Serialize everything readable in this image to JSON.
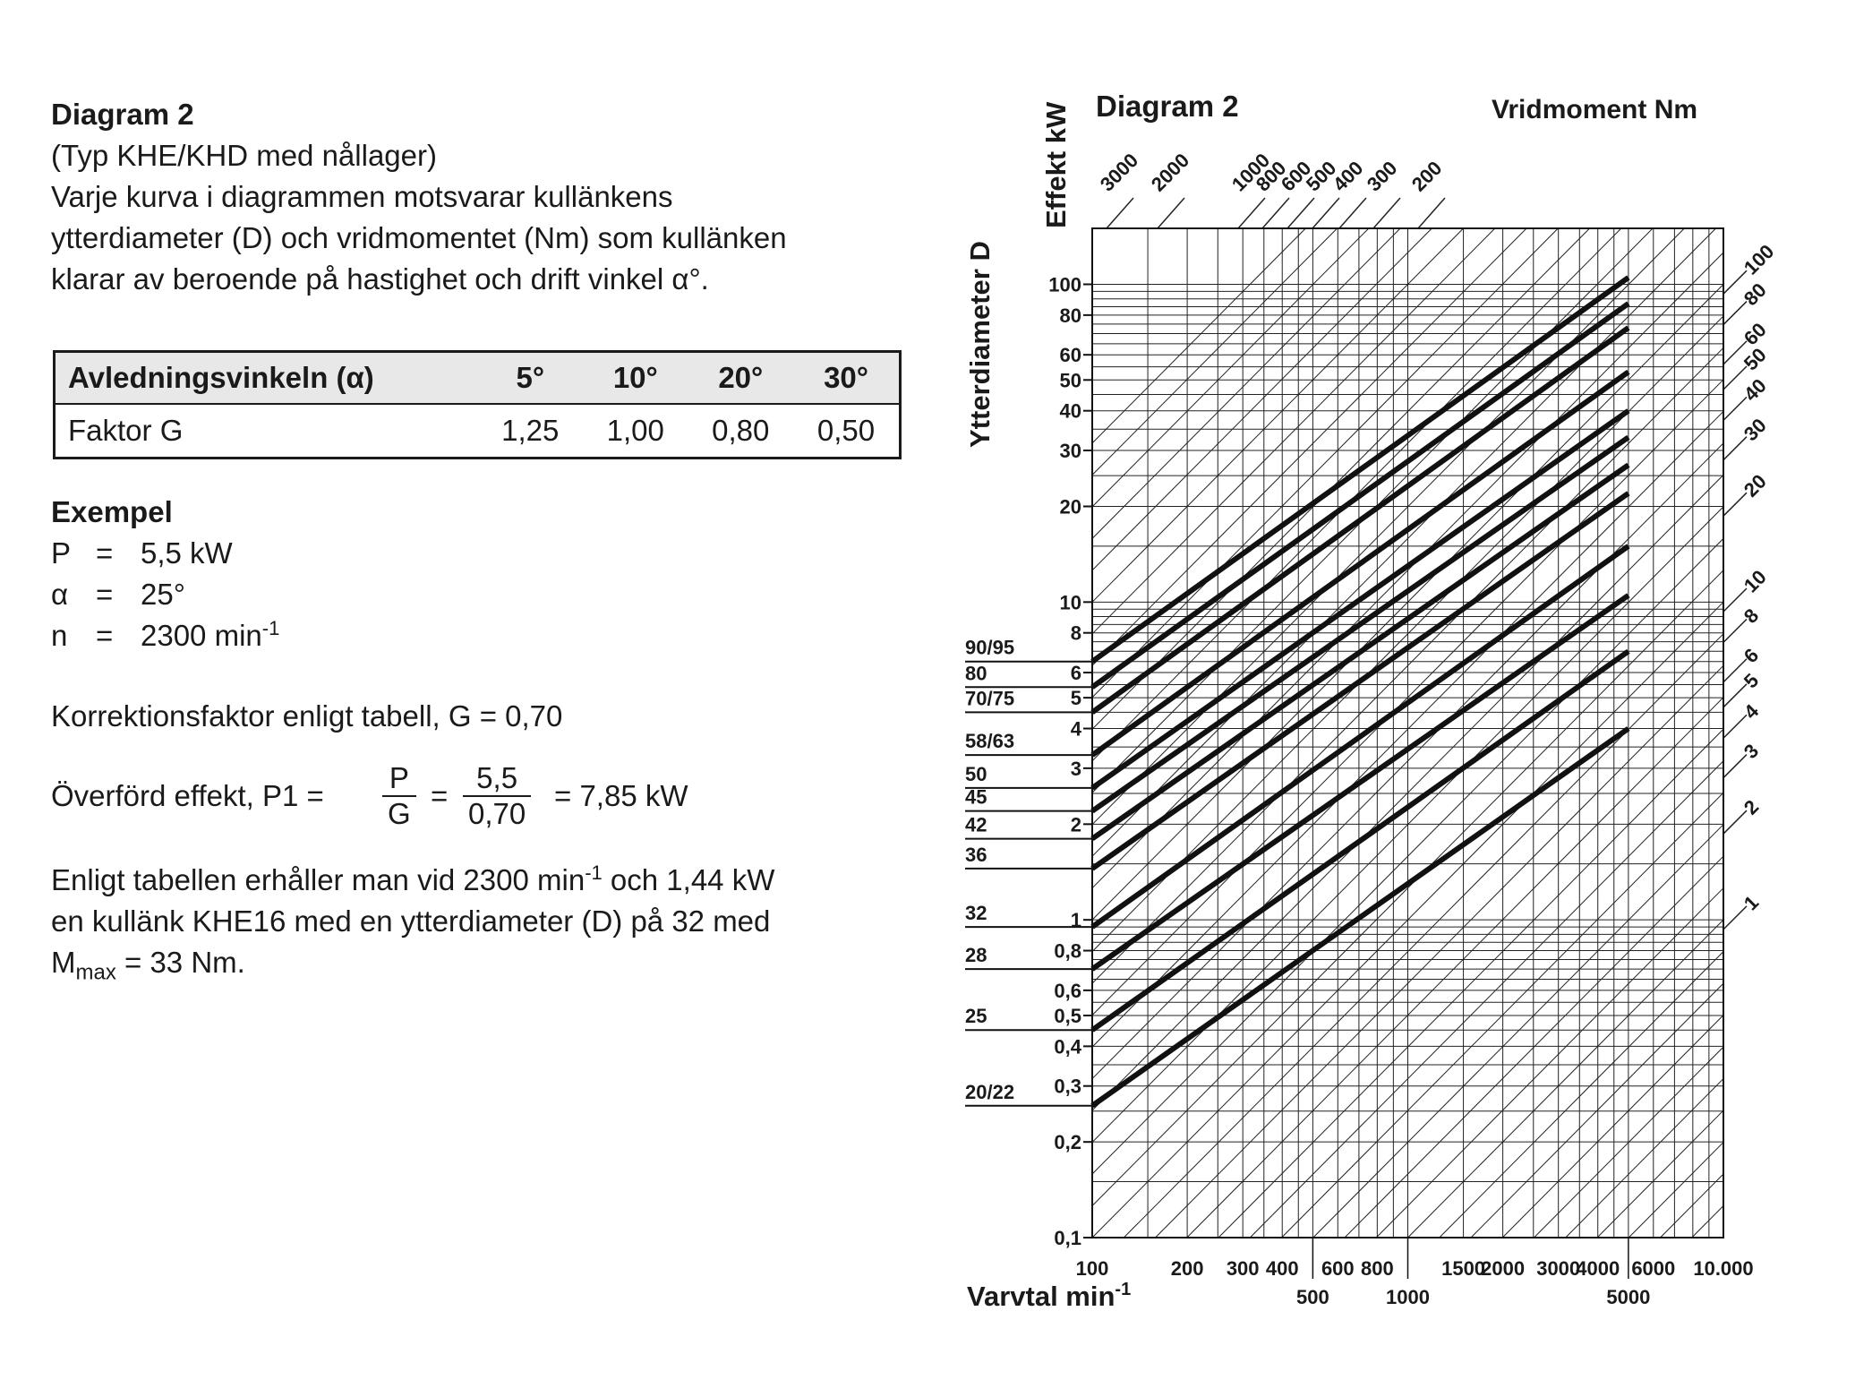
{
  "text": {
    "title": "Diagram 2",
    "subtitle": "(Typ KHE/KHD med nållager)",
    "desc1": "Varje kurva i diagrammen motsvarar kullänkens",
    "desc2": "ytterdiameter (D) och vridmomentet (Nm) som kullänken",
    "desc3": "klarar av  beroende på hastighet och drift vinkel α°."
  },
  "table": {
    "header": [
      "Avledningsvinkeln (α)",
      "5°",
      "10°",
      "20°",
      "30°"
    ],
    "row": [
      "Faktor G",
      "1,25",
      "1,00",
      "0,80",
      "0,50"
    ]
  },
  "example": {
    "title": "Exempel",
    "p_lhs": "P",
    "p_eq": "=",
    "p_val": "5,5 kW",
    "a_lhs": "α",
    "a_eq": "=",
    "a_val": "25°",
    "n_lhs": "n",
    "n_eq": "=",
    "n_val": "2300 min",
    "n_exp": "-1",
    "korr": "Korrektionsfaktor enligt tabell, G = 0,70",
    "overf_pre": "Överförd effekt, P1 =",
    "frac1_num": "P",
    "frac1_den": "G",
    "eq": "=",
    "frac2_num": "5,5",
    "frac2_den": "0,70",
    "overf_post": "= 7,85 kW",
    "res1_a": "Enligt tabellen erhåller man vid 2300 min",
    "res1_exp": "-1",
    "res1_b": " och 1,44 kW",
    "res2": "en kullänk KHE16 med en ytterdiameter (D) på 32 med",
    "res3_a": "M",
    "res3_sub": "max",
    "res3_b": " = 33 Nm."
  },
  "chart_data": {
    "type": "line",
    "title": "Diagram 2",
    "xlabel": "Varvtal min",
    "xlabel_exp": "-1",
    "ylabel": "Effekt kW",
    "y2label": "Ytterdiameter  D",
    "toplabel": "Vridmoment Nm",
    "x_scale": "log",
    "y_scale": "log",
    "xlim": [
      100,
      10000
    ],
    "ylim": [
      0.1,
      150
    ],
    "grid": true,
    "x_ticks_top_row": [
      {
        "v": 100,
        "label": "100"
      },
      {
        "v": 200,
        "label": "200"
      },
      {
        "v": 300,
        "label": "300"
      },
      {
        "v": 400,
        "label": "400"
      },
      {
        "v": 600,
        "label": "600"
      },
      {
        "v": 800,
        "label": "800"
      },
      {
        "v": 1500,
        "label": "1500"
      },
      {
        "v": 2000,
        "label": "2000"
      },
      {
        "v": 3000,
        "label": "3000"
      },
      {
        "v": 4000,
        "label": "4000"
      },
      {
        "v": 6000,
        "label": "6000"
      },
      {
        "v": 10000,
        "label": "10.000"
      }
    ],
    "x_ticks_bottom_row": [
      {
        "v": 500,
        "label": "500"
      },
      {
        "v": 1000,
        "label": "1000"
      },
      {
        "v": 5000,
        "label": "5000"
      }
    ],
    "y_ticks": [
      {
        "v": 0.1,
        "label": "0,1"
      },
      {
        "v": 0.2,
        "label": "0,2"
      },
      {
        "v": 0.3,
        "label": "0,3"
      },
      {
        "v": 0.4,
        "label": "0,4"
      },
      {
        "v": 0.5,
        "label": "0,5"
      },
      {
        "v": 0.6,
        "label": "0,6"
      },
      {
        "v": 0.8,
        "label": "0,8"
      },
      {
        "v": 1,
        "label": "1"
      },
      {
        "v": 2,
        "label": "2"
      },
      {
        "v": 3,
        "label": "3"
      },
      {
        "v": 4,
        "label": "4"
      },
      {
        "v": 5,
        "label": "5"
      },
      {
        "v": 6,
        "label": "6"
      },
      {
        "v": 8,
        "label": "8"
      },
      {
        "v": 10,
        "label": "10"
      },
      {
        "v": 20,
        "label": "20"
      },
      {
        "v": 30,
        "label": "30"
      },
      {
        "v": 40,
        "label": "40"
      },
      {
        "v": 50,
        "label": "50"
      },
      {
        "v": 60,
        "label": "60"
      },
      {
        "v": 80,
        "label": "80"
      },
      {
        "v": 100,
        "label": "100"
      }
    ],
    "diameter_labels": [
      {
        "label": "90/95",
        "y": 6.5
      },
      {
        "label": "80",
        "y": 5.4
      },
      {
        "label": "70/75",
        "y": 4.5
      },
      {
        "label": "58/63",
        "y": 3.3
      },
      {
        "label": "50",
        "y": 2.6
      },
      {
        "label": "45",
        "y": 2.2
      },
      {
        "label": "42",
        "y": 1.8
      },
      {
        "label": "36",
        "y": 1.45
      },
      {
        "label": "32",
        "y": 0.95
      },
      {
        "label": "28",
        "y": 0.7
      },
      {
        "label": "25",
        "y": 0.45
      },
      {
        "label": "20/22",
        "y": 0.26
      }
    ],
    "torque_lines_top": [
      3000,
      2000,
      1000,
      800,
      600,
      500,
      400,
      300,
      200
    ],
    "torque_labels_top": [
      "3000",
      "2000",
      "1000",
      "800",
      "600",
      "500",
      "400",
      "300",
      "200"
    ],
    "torque_lines_right": [
      100,
      80,
      60,
      50,
      40,
      30,
      20,
      10,
      8,
      6,
      5,
      4,
      3,
      2,
      1
    ],
    "torque_labels_right": [
      "100",
      "80",
      "60",
      "50",
      "40",
      "30",
      "20",
      "10",
      "8",
      "6",
      "5",
      "4",
      "3",
      "2",
      "1"
    ],
    "series": [
      {
        "label": "90/95",
        "x": [
          100,
          5000
        ],
        "y": [
          6.5,
          105
        ]
      },
      {
        "label": "80",
        "x": [
          100,
          5000
        ],
        "y": [
          5.4,
          87
        ]
      },
      {
        "label": "70/75",
        "x": [
          100,
          5000
        ],
        "y": [
          4.5,
          73
        ]
      },
      {
        "label": "58/63",
        "x": [
          100,
          5000
        ],
        "y": [
          3.3,
          53
        ]
      },
      {
        "label": "50",
        "x": [
          100,
          5000
        ],
        "y": [
          2.6,
          40
        ]
      },
      {
        "label": "45",
        "x": [
          100,
          5000
        ],
        "y": [
          2.2,
          33
        ]
      },
      {
        "label": "42",
        "x": [
          100,
          5000
        ],
        "y": [
          1.8,
          27
        ]
      },
      {
        "label": "36",
        "x": [
          100,
          5000
        ],
        "y": [
          1.45,
          22
        ]
      },
      {
        "label": "32",
        "x": [
          100,
          5000
        ],
        "y": [
          0.95,
          15
        ]
      },
      {
        "label": "28",
        "x": [
          100,
          5000
        ],
        "y": [
          0.7,
          10.5
        ]
      },
      {
        "label": "25",
        "x": [
          100,
          5000
        ],
        "y": [
          0.45,
          7
        ]
      },
      {
        "label": "20/22",
        "x": [
          100,
          5000
        ],
        "y": [
          0.26,
          4
        ]
      }
    ]
  }
}
